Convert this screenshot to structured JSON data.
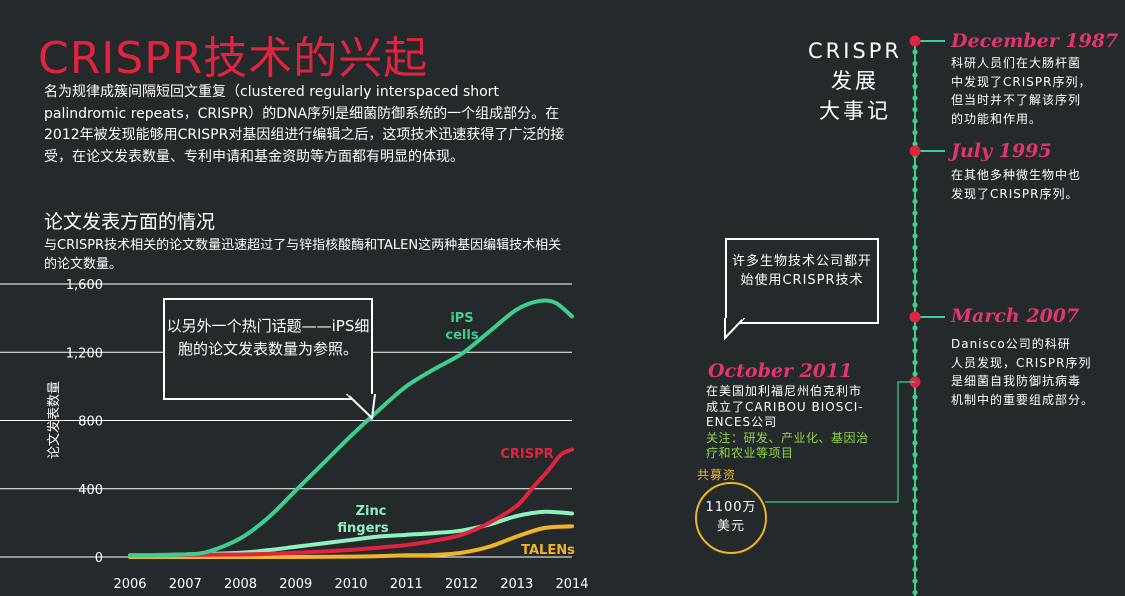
{
  "header": {
    "title": "CRISPR技术的兴起",
    "intro": "名为规律成簇间隔短回文重复（clustered regularly interspaced short palindromic repeats，CRISPR）的DNA序列是细菌防御系统的一个组成部分。在2012年被发现能够用CRISPR对基因组进行编辑之后，这项技术迅速获得了广泛的接受，在论文发表数量、专利申请和基金资助等方面都有明显的体现。"
  },
  "section": {
    "title": "论文发表方面的情况",
    "desc": "与CRISPR技术相关的论文数量迅速超过了与锌指核酸酶和TALEN这两种基因编辑技术相关的论文数量。"
  },
  "callouts": {
    "ips": "以另外一个热门话题——iPS细胞的论文发表数量为参照。",
    "biotech": "许多生物技术公司都开始使用CRISPR技术"
  },
  "chart_data": {
    "type": "line",
    "ylabel": "论文发表数量",
    "xlabel": "",
    "ylim": [
      0,
      1600
    ],
    "xlim": [
      2006,
      2014
    ],
    "xticks": [
      "2006",
      "2007",
      "2008",
      "2009",
      "2010",
      "2011",
      "2012",
      "2013",
      "2014"
    ],
    "yticks": [
      "0",
      "400",
      "800",
      "1,200",
      "1,600"
    ],
    "series": [
      {
        "name": "iPS cells",
        "color": "#3ecf8e",
        "x": [
          2006,
          2006.5,
          2007,
          2007.4,
          2008,
          2008.5,
          2009,
          2009.5,
          2010,
          2010.5,
          2011,
          2011.5,
          2012,
          2012.5,
          2013,
          2013.4,
          2013.7,
          2014
        ],
        "y": [
          10,
          10,
          15,
          30,
          110,
          230,
          390,
          550,
          710,
          860,
          1000,
          1100,
          1190,
          1320,
          1450,
          1500,
          1490,
          1410
        ]
      },
      {
        "name": "CRISPR",
        "color": "#e0243f",
        "x": [
          2006,
          2007,
          2008,
          2008.5,
          2009,
          2009.5,
          2010,
          2010.5,
          2011,
          2011.5,
          2012,
          2012.5,
          2013,
          2013.3,
          2013.6,
          2013.8,
          2014
        ],
        "y": [
          10,
          12,
          15,
          18,
          25,
          32,
          42,
          55,
          70,
          95,
          130,
          200,
          300,
          410,
          520,
          600,
          630
        ]
      },
      {
        "name": "Zinc fingers",
        "color": "#8ff0c0",
        "x": [
          2006,
          2007,
          2008,
          2008.5,
          2009,
          2009.5,
          2010,
          2010.5,
          2011,
          2011.5,
          2012,
          2012.5,
          2013,
          2013.5,
          2014
        ],
        "y": [
          10,
          15,
          25,
          40,
          60,
          80,
          100,
          120,
          130,
          140,
          155,
          190,
          240,
          265,
          255
        ]
      },
      {
        "name": "TALENs",
        "color": "#f0b429",
        "x": [
          2006,
          2007,
          2008,
          2009,
          2010,
          2010.5,
          2011,
          2011.5,
          2012,
          2012.5,
          2013,
          2013.5,
          2014
        ],
        "y": [
          0,
          0,
          0,
          0,
          2,
          5,
          10,
          12,
          25,
          60,
          120,
          170,
          180
        ]
      }
    ],
    "series_labels": [
      {
        "text": "iPS",
        "color": "#3ecf8e"
      },
      {
        "text": "cells",
        "color": "#3ecf8e"
      },
      {
        "text": "CRISPR",
        "color": "#e0243f"
      },
      {
        "text": "Zinc",
        "color": "#8ff0c0"
      },
      {
        "text": "fingers",
        "color": "#8ff0c0"
      },
      {
        "text": "TALENs",
        "color": "#f0b429"
      }
    ]
  },
  "timeline": {
    "title_lines": [
      "CRISPR",
      "发展",
      "大事记"
    ],
    "line_color": "#3ecf8e",
    "marker_color": "#e0243f",
    "events": [
      {
        "date": "December 1987",
        "text": [
          "科研人员们在大肠杆菌",
          "中发现了CRISPR序列，",
          "但当时并不了解该序列",
          "的功能和作用。"
        ]
      },
      {
        "date": "July 1995",
        "text": [
          "在其他多种微生物中也",
          "发现了CRISPR序列。"
        ]
      },
      {
        "date": "March 2007",
        "text": [
          "Danisco公司的科研",
          "人员发现，CRISPR序列",
          "是细菌自我防御抗病毒",
          "机制中的重要组成部分。"
        ]
      }
    ],
    "company_event": {
      "date": "October 2011",
      "text": [
        "在美国加利福尼州伯克利市",
        "成立了CARIBOU BIOSCI-",
        "ENCES公司"
      ],
      "focus": [
        "关注：研发、产业化、基因治",
        "疗和农业等项目"
      ],
      "funding_label": "共募资",
      "funding_amount": [
        "1100万",
        "美元"
      ]
    }
  }
}
